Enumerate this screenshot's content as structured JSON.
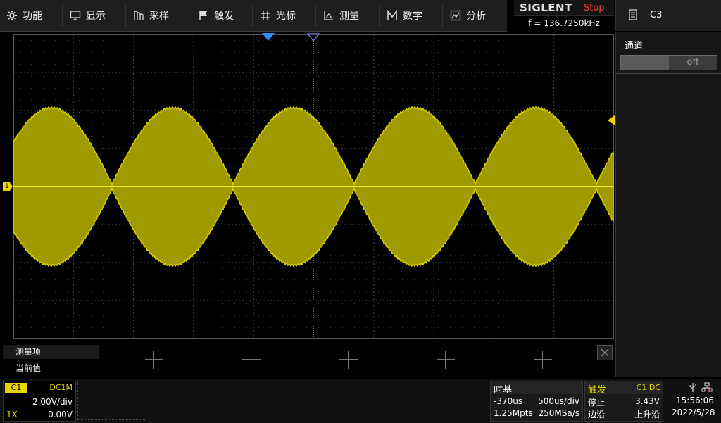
{
  "menu": {
    "items": [
      {
        "label": "功能",
        "icon": "gear-icon"
      },
      {
        "label": "显示",
        "icon": "monitor-icon"
      },
      {
        "label": "采样",
        "icon": "acquire-icon"
      },
      {
        "label": "触发",
        "icon": "flag-icon"
      },
      {
        "label": "光标",
        "icon": "cursor-icon"
      },
      {
        "label": "测量",
        "icon": "ruler-icon"
      },
      {
        "label": "数学",
        "icon": "math-icon"
      },
      {
        "label": "分析",
        "icon": "analysis-icon"
      }
    ]
  },
  "brand": {
    "logo": "SIGLENT",
    "run_state": "Stop",
    "frequency": "f = 136.7250kHz"
  },
  "right_panel": {
    "title": "C3",
    "channel_label": "通道",
    "toggle_state": "off"
  },
  "measure": {
    "label": "测量项",
    "current": "当前值"
  },
  "channel1": {
    "tag": "C1",
    "coupling": "DC1M",
    "scale": "2.00V/div",
    "probe": "1X",
    "offset": "0.00V",
    "color": "#e8d400"
  },
  "timebase": {
    "title": "时基",
    "delay": "-370us",
    "scale": "500us/div",
    "depth": "1.25Mpts",
    "rate": "250MSa/s"
  },
  "trigger": {
    "title": "触发",
    "source": "C1 DC",
    "mode": "停止",
    "level": "3.43V",
    "type": "边沿",
    "slope": "上升沿"
  },
  "status": {
    "time": "15:56:06",
    "date": "2022/5/28"
  },
  "markers": {
    "ch1_marker": "1"
  }
}
